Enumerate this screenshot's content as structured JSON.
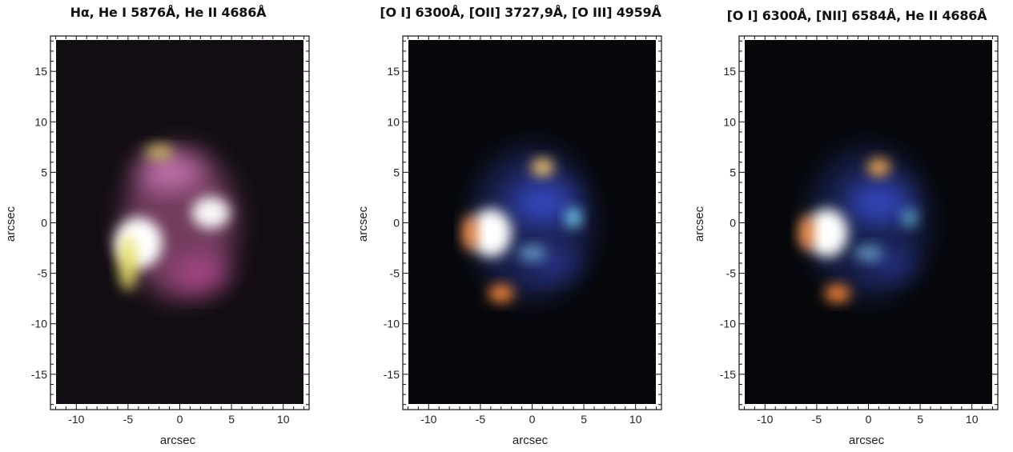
{
  "panels": [
    {
      "id": "panel-1",
      "title": "Hα, He I 5876Å, He II 4686Å",
      "xlabel": "arcsec",
      "ylabel": "arcsec",
      "palette": "pink"
    },
    {
      "id": "panel-2",
      "title": "[O I] 6300Å, [OII] 3727,9Å, [O III] 4959Å",
      "xlabel": "arcsec",
      "ylabel": "arcsec",
      "palette": "blue"
    },
    {
      "id": "panel-3",
      "title": "[O I] 6300Å, [NII] 6584Å, He II 4686Å",
      "xlabel": "arcsec",
      "ylabel": "arcsec",
      "palette": "blue2"
    }
  ],
  "axes": {
    "xlim": [
      -12.5,
      12.5
    ],
    "ylim": [
      -18.5,
      18.5
    ],
    "x_ticks": [
      -10,
      -5,
      0,
      5,
      10
    ],
    "y_ticks": [
      15,
      10,
      5,
      0,
      -5,
      -10,
      -15
    ],
    "x_tick_labels": [
      "-10",
      "-5",
      "0",
      "5",
      "10"
    ],
    "y_tick_labels": [
      "15",
      "10",
      "5",
      "0",
      "-5",
      "-10",
      "-15"
    ]
  },
  "colors": {
    "pink_glow": "#c0609a",
    "white_core": "#ffffff",
    "yellow_edge": "#e6e06a",
    "blue_shell": "#3a4fc8",
    "orange_knot": "#ff8a3a",
    "cyan_knot": "#7fe6ff",
    "background": "#0d0a0e"
  }
}
